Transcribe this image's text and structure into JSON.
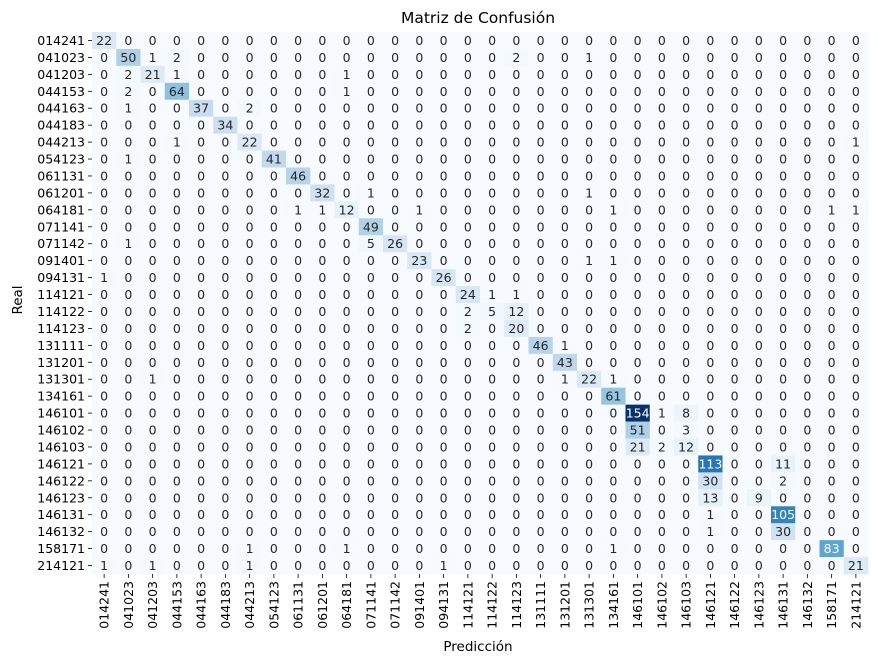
{
  "chart_data": {
    "type": "heatmap",
    "title": "Matriz de Confusión",
    "xlabel": "Predicción",
    "ylabel": "Real",
    "labels": [
      "014241",
      "041023",
      "041203",
      "044153",
      "044163",
      "044183",
      "044213",
      "054123",
      "061131",
      "061201",
      "064181",
      "071141",
      "071142",
      "091401",
      "094131",
      "114121",
      "114122",
      "114123",
      "131111",
      "131201",
      "131301",
      "134161",
      "146101",
      "146102",
      "146103",
      "146121",
      "146122",
      "146123",
      "146131",
      "146132",
      "158171",
      "214121"
    ],
    "value_range": [
      0,
      154
    ],
    "colormap": "Blues",
    "colorbar": false,
    "matrix": [
      [
        22,
        0,
        0,
        0,
        0,
        0,
        0,
        0,
        0,
        0,
        0,
        0,
        0,
        0,
        0,
        0,
        0,
        0,
        0,
        0,
        0,
        0,
        0,
        0,
        0,
        0,
        0,
        0,
        0,
        0,
        0,
        0
      ],
      [
        0,
        50,
        1,
        2,
        0,
        0,
        0,
        0,
        0,
        0,
        0,
        0,
        0,
        0,
        0,
        0,
        0,
        2,
        0,
        0,
        1,
        0,
        0,
        0,
        0,
        0,
        0,
        0,
        0,
        0,
        0,
        0
      ],
      [
        0,
        2,
        21,
        1,
        0,
        0,
        0,
        0,
        0,
        0,
        1,
        0,
        0,
        0,
        0,
        0,
        0,
        0,
        0,
        0,
        0,
        0,
        0,
        0,
        0,
        0,
        0,
        0,
        0,
        0,
        0,
        0
      ],
      [
        0,
        2,
        0,
        64,
        0,
        0,
        0,
        0,
        0,
        0,
        1,
        0,
        0,
        0,
        0,
        0,
        0,
        0,
        0,
        0,
        0,
        0,
        0,
        0,
        0,
        0,
        0,
        0,
        0,
        0,
        0,
        0
      ],
      [
        0,
        1,
        0,
        0,
        37,
        0,
        2,
        0,
        0,
        0,
        0,
        0,
        0,
        0,
        0,
        0,
        0,
        0,
        0,
        0,
        0,
        0,
        0,
        0,
        0,
        0,
        0,
        0,
        0,
        0,
        0,
        0
      ],
      [
        0,
        0,
        0,
        0,
        0,
        34,
        0,
        0,
        0,
        0,
        0,
        0,
        0,
        0,
        0,
        0,
        0,
        0,
        0,
        0,
        0,
        0,
        0,
        0,
        0,
        0,
        0,
        0,
        0,
        0,
        0,
        0
      ],
      [
        0,
        0,
        0,
        1,
        0,
        0,
        22,
        0,
        0,
        0,
        0,
        0,
        0,
        0,
        0,
        0,
        0,
        0,
        0,
        0,
        0,
        0,
        0,
        0,
        0,
        0,
        0,
        0,
        0,
        0,
        0,
        1
      ],
      [
        0,
        1,
        0,
        0,
        0,
        0,
        0,
        41,
        0,
        0,
        0,
        0,
        0,
        0,
        0,
        0,
        0,
        0,
        0,
        0,
        0,
        0,
        0,
        0,
        0,
        0,
        0,
        0,
        0,
        0,
        0,
        0
      ],
      [
        0,
        0,
        0,
        0,
        0,
        0,
        0,
        0,
        46,
        0,
        0,
        0,
        0,
        0,
        0,
        0,
        0,
        0,
        0,
        0,
        0,
        0,
        0,
        0,
        0,
        0,
        0,
        0,
        0,
        0,
        0,
        0
      ],
      [
        0,
        0,
        0,
        0,
        0,
        0,
        0,
        0,
        0,
        32,
        0,
        1,
        0,
        0,
        0,
        0,
        0,
        0,
        0,
        0,
        1,
        0,
        0,
        0,
        0,
        0,
        0,
        0,
        0,
        0,
        0,
        0
      ],
      [
        0,
        0,
        0,
        0,
        0,
        0,
        0,
        0,
        1,
        1,
        12,
        0,
        0,
        1,
        0,
        0,
        0,
        0,
        0,
        0,
        0,
        1,
        0,
        0,
        0,
        0,
        0,
        0,
        0,
        0,
        1,
        1
      ],
      [
        0,
        0,
        0,
        0,
        0,
        0,
        0,
        0,
        0,
        0,
        0,
        49,
        0,
        0,
        0,
        0,
        0,
        0,
        0,
        0,
        0,
        0,
        0,
        0,
        0,
        0,
        0,
        0,
        0,
        0,
        0,
        0
      ],
      [
        0,
        1,
        0,
        0,
        0,
        0,
        0,
        0,
        0,
        0,
        0,
        5,
        26,
        0,
        0,
        0,
        0,
        0,
        0,
        0,
        0,
        0,
        0,
        0,
        0,
        0,
        0,
        0,
        0,
        0,
        0,
        0
      ],
      [
        0,
        0,
        0,
        0,
        0,
        0,
        0,
        0,
        0,
        0,
        0,
        0,
        0,
        23,
        0,
        0,
        0,
        0,
        0,
        0,
        1,
        1,
        0,
        0,
        0,
        0,
        0,
        0,
        0,
        0,
        0,
        0
      ],
      [
        1,
        0,
        0,
        0,
        0,
        0,
        0,
        0,
        0,
        0,
        0,
        0,
        0,
        0,
        26,
        0,
        0,
        0,
        0,
        0,
        0,
        0,
        0,
        0,
        0,
        0,
        0,
        0,
        0,
        0,
        0,
        0
      ],
      [
        0,
        0,
        0,
        0,
        0,
        0,
        0,
        0,
        0,
        0,
        0,
        0,
        0,
        0,
        0,
        24,
        1,
        1,
        0,
        0,
        0,
        0,
        0,
        0,
        0,
        0,
        0,
        0,
        0,
        0,
        0,
        0
      ],
      [
        0,
        0,
        0,
        0,
        0,
        0,
        0,
        0,
        0,
        0,
        0,
        0,
        0,
        0,
        0,
        2,
        5,
        12,
        0,
        0,
        0,
        0,
        0,
        0,
        0,
        0,
        0,
        0,
        0,
        0,
        0,
        0
      ],
      [
        0,
        0,
        0,
        0,
        0,
        0,
        0,
        0,
        0,
        0,
        0,
        0,
        0,
        0,
        0,
        2,
        0,
        20,
        0,
        0,
        0,
        0,
        0,
        0,
        0,
        0,
        0,
        0,
        0,
        0,
        0,
        0
      ],
      [
        0,
        0,
        0,
        0,
        0,
        0,
        0,
        0,
        0,
        0,
        0,
        0,
        0,
        0,
        0,
        0,
        0,
        0,
        46,
        1,
        0,
        0,
        0,
        0,
        0,
        0,
        0,
        0,
        0,
        0,
        0,
        0
      ],
      [
        0,
        0,
        0,
        0,
        0,
        0,
        0,
        0,
        0,
        0,
        0,
        0,
        0,
        0,
        0,
        0,
        0,
        0,
        0,
        43,
        0,
        0,
        0,
        0,
        0,
        0,
        0,
        0,
        0,
        0,
        0,
        0
      ],
      [
        0,
        0,
        1,
        0,
        0,
        0,
        0,
        0,
        0,
        0,
        0,
        0,
        0,
        0,
        0,
        0,
        0,
        0,
        0,
        1,
        22,
        1,
        0,
        0,
        0,
        0,
        0,
        0,
        0,
        0,
        0,
        0
      ],
      [
        0,
        0,
        0,
        0,
        0,
        0,
        0,
        0,
        0,
        0,
        0,
        0,
        0,
        0,
        0,
        0,
        0,
        0,
        0,
        0,
        0,
        61,
        0,
        0,
        0,
        0,
        0,
        0,
        0,
        0,
        0,
        0
      ],
      [
        0,
        0,
        0,
        0,
        0,
        0,
        0,
        0,
        0,
        0,
        0,
        0,
        0,
        0,
        0,
        0,
        0,
        0,
        0,
        0,
        0,
        0,
        154,
        1,
        8,
        0,
        0,
        0,
        0,
        0,
        0,
        0
      ],
      [
        0,
        0,
        0,
        0,
        0,
        0,
        0,
        0,
        0,
        0,
        0,
        0,
        0,
        0,
        0,
        0,
        0,
        0,
        0,
        0,
        0,
        0,
        51,
        0,
        3,
        0,
        0,
        0,
        0,
        0,
        0,
        0
      ],
      [
        0,
        0,
        0,
        0,
        0,
        0,
        0,
        0,
        0,
        0,
        0,
        0,
        0,
        0,
        0,
        0,
        0,
        0,
        0,
        0,
        0,
        0,
        21,
        2,
        12,
        0,
        0,
        0,
        0,
        0,
        0,
        0
      ],
      [
        0,
        0,
        0,
        0,
        0,
        0,
        0,
        0,
        0,
        0,
        0,
        0,
        0,
        0,
        0,
        0,
        0,
        0,
        0,
        0,
        0,
        0,
        0,
        0,
        0,
        113,
        0,
        0,
        11,
        0,
        0,
        0
      ],
      [
        0,
        0,
        0,
        0,
        0,
        0,
        0,
        0,
        0,
        0,
        0,
        0,
        0,
        0,
        0,
        0,
        0,
        0,
        0,
        0,
        0,
        0,
        0,
        0,
        0,
        30,
        0,
        0,
        2,
        0,
        0,
        0
      ],
      [
        0,
        0,
        0,
        0,
        0,
        0,
        0,
        0,
        0,
        0,
        0,
        0,
        0,
        0,
        0,
        0,
        0,
        0,
        0,
        0,
        0,
        0,
        0,
        0,
        0,
        13,
        0,
        9,
        0,
        0,
        0,
        0
      ],
      [
        0,
        0,
        0,
        0,
        0,
        0,
        0,
        0,
        0,
        0,
        0,
        0,
        0,
        0,
        0,
        0,
        0,
        0,
        0,
        0,
        0,
        0,
        0,
        0,
        0,
        1,
        0,
        0,
        105,
        0,
        0,
        0
      ],
      [
        0,
        0,
        0,
        0,
        0,
        0,
        0,
        0,
        0,
        0,
        0,
        0,
        0,
        0,
        0,
        0,
        0,
        0,
        0,
        0,
        0,
        0,
        0,
        0,
        0,
        1,
        0,
        0,
        30,
        0,
        0,
        0
      ],
      [
        0,
        0,
        0,
        0,
        0,
        0,
        1,
        0,
        0,
        0,
        1,
        0,
        0,
        0,
        0,
        0,
        0,
        0,
        0,
        0,
        0,
        1,
        0,
        0,
        0,
        0,
        0,
        0,
        0,
        0,
        83,
        0
      ],
      [
        1,
        0,
        1,
        0,
        0,
        0,
        1,
        0,
        0,
        0,
        0,
        0,
        0,
        0,
        1,
        0,
        0,
        0,
        0,
        0,
        0,
        0,
        0,
        0,
        0,
        0,
        0,
        0,
        0,
        0,
        0,
        21
      ]
    ]
  }
}
